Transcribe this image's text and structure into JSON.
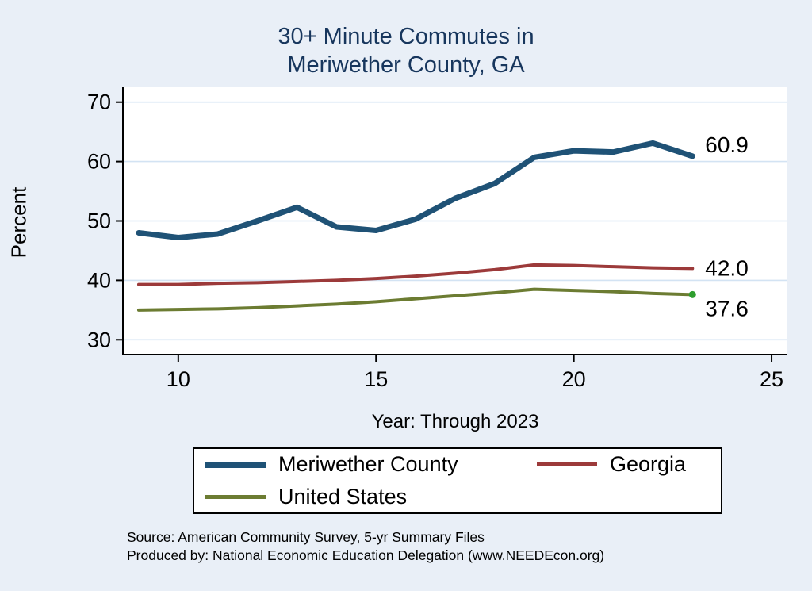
{
  "title": {
    "line1": "30+ Minute Commutes in",
    "line2": "Meriwether County, GA",
    "color": "#17365d"
  },
  "axes": {
    "y_label": "Percent",
    "x_label": "Year: Through 2023",
    "y_ticks": [
      30,
      40,
      50,
      60,
      70
    ],
    "x_ticks": [
      10,
      15,
      20,
      25
    ]
  },
  "chart_data": {
    "type": "line",
    "title": "30+ Minute Commutes in Meriwether County, GA",
    "xlabel": "Year: Through 2023",
    "ylabel": "Percent",
    "x": [
      9,
      10,
      11,
      12,
      13,
      14,
      15,
      16,
      17,
      18,
      19,
      20,
      21,
      22,
      23
    ],
    "xlim": [
      8.6,
      25.4
    ],
    "ylim": [
      27.5,
      72.5
    ],
    "grid": true,
    "legend_position": "bottom",
    "series": [
      {
        "name": "Meriwether County",
        "color": "#1f5276",
        "width": 7,
        "values": [
          48.0,
          47.2,
          47.8,
          50.0,
          52.3,
          49.0,
          48.4,
          50.3,
          53.8,
          56.3,
          60.7,
          61.8,
          61.6,
          63.1,
          60.9
        ],
        "end_label": "60.9",
        "end_label_dy": -14
      },
      {
        "name": "Georgia",
        "color": "#9c3a3a",
        "width": 4,
        "values": [
          39.3,
          39.3,
          39.5,
          39.6,
          39.8,
          40.0,
          40.3,
          40.7,
          41.2,
          41.8,
          42.6,
          42.5,
          42.3,
          42.1,
          42.0
        ],
        "end_label": "42.0",
        "end_label_dy": 0
      },
      {
        "name": "United States",
        "color": "#6c7c32",
        "width": 4,
        "values": [
          35.0,
          35.1,
          35.2,
          35.4,
          35.7,
          36.0,
          36.4,
          36.9,
          37.4,
          37.9,
          38.5,
          38.3,
          38.1,
          37.8,
          37.6
        ],
        "end_label": "37.6",
        "end_label_dy": 18,
        "end_marker_color": "#2e9e2e"
      }
    ]
  },
  "style": {
    "page_bg": "#e9eff7",
    "plot_bg": "#ffffff",
    "grid_color": "#d3e3f3",
    "axis_color": "#000000",
    "tick_font_size": 27,
    "end_label_font_size": 28
  },
  "source": {
    "line1": "Source: American Community Survey, 5-yr Summary Files",
    "line2": "Produced by: National Economic Education Delegation (www.NEEDEcon.org)"
  }
}
